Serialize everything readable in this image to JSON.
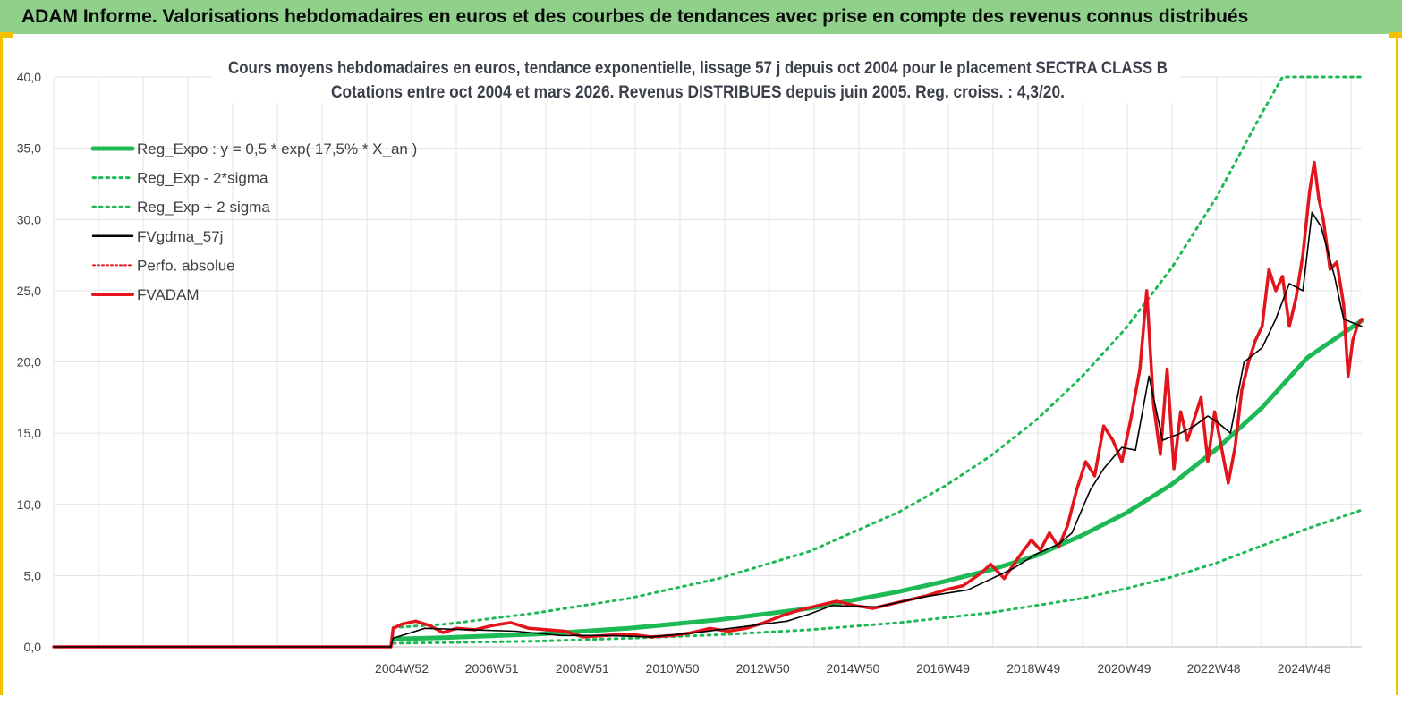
{
  "page": {
    "banner_title": "ADAM Informe. Valorisations hebdomadaires en euros et des courbes de tendances avec prise en compte des revenus connus distribués"
  },
  "colors": {
    "banner_bg": "#8fd18a",
    "accent_yellow": "#f2c200",
    "reg_expo": "#1db954",
    "fvgdma": "#000000",
    "fvadam": "#e3141c"
  },
  "chart_data": {
    "type": "line",
    "title_line1": "Cours moyens hebdomadaires en euros, tendance exponentielle, lissage 57 j depuis oct 2004 pour le placement SECTRA CLASS B",
    "title_line2": "Cotations entre oct 2004 et mars 2026. Revenus DISTRIBUES depuis juin 2005. Reg. croiss. : 4,3/20.",
    "xlabel": "",
    "ylabel": "",
    "ylim": [
      0,
      40
    ],
    "yticks": [
      "0,0",
      "5,0",
      "10,0",
      "15,0",
      "20,0",
      "25,0",
      "30,0",
      "35,0",
      "40,0"
    ],
    "x_range": [
      1997.3,
      2026.2
    ],
    "x_tick_labels": [
      "2004W52",
      "2006W51",
      "2008W51",
      "2010W50",
      "2012W50",
      "2014W50",
      "2016W49",
      "2018W49",
      "2020W49",
      "2022W48",
      "2024W48"
    ],
    "x_tick_years": [
      2004.99,
      2006.98,
      2008.98,
      2010.97,
      2012.97,
      2014.96,
      2016.95,
      2018.95,
      2020.95,
      2022.93,
      2024.93
    ],
    "grid": true,
    "legend_position": "top-left",
    "legend": [
      {
        "key": "reg_expo",
        "label": "Reg_Expo : y = 0,5 * exp( 17,5% *  X_an )"
      },
      {
        "key": "reg_minus",
        "label": "Reg_Exp - 2*sigma"
      },
      {
        "key": "reg_plus",
        "label": "Reg_Exp + 2 sigma"
      },
      {
        "key": "fvgdma",
        "label": "FVgdma_57j"
      },
      {
        "key": "perfo",
        "label": "Perfo. absolue"
      },
      {
        "key": "fvadam",
        "label": "FVADAM"
      }
    ],
    "series": [
      {
        "key": "reg_expo",
        "name": "Reg_Expo : y = 0,5 * exp( 17,5% *  X_an )",
        "x": [
          2004.8,
          2006,
          2008,
          2010,
          2012,
          2014,
          2015,
          2016,
          2017,
          2018,
          2019,
          2020,
          2021,
          2022,
          2023,
          2024,
          2025,
          2025.6,
          2026.2
        ],
        "y": [
          0.55,
          0.65,
          0.9,
          1.3,
          1.9,
          2.7,
          3.3,
          3.9,
          4.6,
          5.4,
          6.4,
          7.8,
          9.4,
          11.4,
          13.9,
          16.8,
          20.3,
          21.6,
          22.9
        ]
      },
      {
        "key": "reg_minus",
        "name": "Reg_Exp - 2*sigma",
        "x": [
          2004.8,
          2006,
          2008,
          2010,
          2012,
          2014,
          2016,
          2018,
          2019,
          2020,
          2021,
          2022,
          2023,
          2024,
          2025,
          2026.2
        ],
        "y": [
          0.25,
          0.3,
          0.4,
          0.6,
          0.85,
          1.2,
          1.7,
          2.4,
          2.9,
          3.4,
          4.1,
          4.9,
          5.9,
          7.1,
          8.3,
          9.6
        ]
      },
      {
        "key": "reg_plus",
        "name": "Reg_Exp + 2 sigma",
        "x": [
          2004.8,
          2006,
          2008,
          2010,
          2012,
          2014,
          2016,
          2017,
          2018,
          2019,
          2020,
          2021,
          2022,
          2023,
          2024,
          2024.45,
          2026.2
        ],
        "y": [
          1.35,
          1.6,
          2.4,
          3.4,
          4.8,
          6.7,
          9.5,
          11.3,
          13.4,
          15.9,
          18.9,
          22.4,
          26.6,
          31.6,
          37.5,
          40.0,
          40.0
        ]
      },
      {
        "key": "fvgdma",
        "name": "FVgdma_57j",
        "x": [
          1997.3,
          2004.75,
          2004.8,
          2005.5,
          2006.5,
          2007.5,
          2008.5,
          2009.5,
          2010.5,
          2011.5,
          2012.5,
          2013.5,
          2014,
          2014.5,
          2015.5,
          2016.5,
          2017.5,
          2018.5,
          2019.0,
          2019.5,
          2019.8,
          2020.2,
          2020.5,
          2020.9,
          2021.2,
          2021.5,
          2021.8,
          2022.2,
          2022.5,
          2022.8,
          2023.0,
          2023.3,
          2023.6,
          2024.0,
          2024.3,
          2024.6,
          2024.9,
          2025.1,
          2025.3,
          2025.6,
          2025.8,
          2026.2
        ],
        "y": [
          0,
          0,
          0.6,
          1.3,
          1.2,
          1.1,
          0.8,
          0.8,
          0.7,
          1.0,
          1.4,
          1.8,
          2.3,
          2.9,
          2.8,
          3.5,
          4.0,
          5.5,
          6.5,
          7.2,
          8.0,
          11.0,
          12.5,
          14.0,
          13.8,
          19.0,
          14.5,
          15.0,
          15.5,
          16.2,
          15.8,
          15.0,
          20.0,
          21.0,
          23.0,
          25.5,
          25.0,
          30.5,
          29.5,
          26.0,
          23.0,
          22.5
        ]
      },
      {
        "key": "fvadam",
        "name": "FVADAM",
        "x": [
          1997.3,
          2004.75,
          2004.8,
          2005.0,
          2005.3,
          2005.6,
          2005.9,
          2006.2,
          2006.6,
          2007.0,
          2007.4,
          2007.8,
          2008.2,
          2008.6,
          2009.0,
          2009.5,
          2010.0,
          2010.5,
          2011.0,
          2011.4,
          2011.8,
          2012.2,
          2012.6,
          2013.0,
          2013.4,
          2013.8,
          2014.2,
          2014.6,
          2015.0,
          2015.4,
          2015.8,
          2016.2,
          2016.6,
          2017.0,
          2017.4,
          2017.8,
          2018.0,
          2018.3,
          2018.6,
          2018.9,
          2019.1,
          2019.3,
          2019.5,
          2019.7,
          2019.9,
          2020.1,
          2020.3,
          2020.5,
          2020.7,
          2020.9,
          2021.1,
          2021.3,
          2021.45,
          2021.6,
          2021.75,
          2021.9,
          2022.05,
          2022.2,
          2022.35,
          2022.5,
          2022.65,
          2022.8,
          2022.95,
          2023.1,
          2023.25,
          2023.4,
          2023.55,
          2023.7,
          2023.85,
          2024.0,
          2024.15,
          2024.3,
          2024.45,
          2024.6,
          2024.75,
          2024.9,
          2025.05,
          2025.15,
          2025.25,
          2025.35,
          2025.5,
          2025.65,
          2025.8,
          2025.9,
          2026.0,
          2026.1,
          2026.2
        ],
        "y": [
          0,
          0,
          1.3,
          1.6,
          1.8,
          1.5,
          1.0,
          1.3,
          1.2,
          1.5,
          1.7,
          1.3,
          1.2,
          1.1,
          0.7,
          0.8,
          0.9,
          0.7,
          0.8,
          1.0,
          1.3,
          1.1,
          1.3,
          1.7,
          2.2,
          2.6,
          2.9,
          3.2,
          2.9,
          2.7,
          3.0,
          3.3,
          3.6,
          4.0,
          4.3,
          5.2,
          5.8,
          4.8,
          6.2,
          7.5,
          6.8,
          8.0,
          7.0,
          8.5,
          11.0,
          13.0,
          12.0,
          15.5,
          14.5,
          13.0,
          16.0,
          19.5,
          25.0,
          17.0,
          13.5,
          19.5,
          12.5,
          16.5,
          14.5,
          16.0,
          17.5,
          13.0,
          16.5,
          14.0,
          11.5,
          14.0,
          18.0,
          20.0,
          21.5,
          22.5,
          26.5,
          25.0,
          26.0,
          22.5,
          24.5,
          27.5,
          32.0,
          34.0,
          31.5,
          30.0,
          26.5,
          27.0,
          24.0,
          19.0,
          21.5,
          22.5,
          23.0
        ]
      }
    ]
  }
}
